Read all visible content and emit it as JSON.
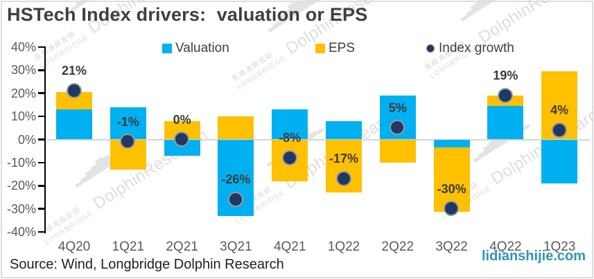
{
  "title": "HSTech Index drivers:  valuation or EPS",
  "source": "Source: Wind, Longbridge Dolphin Research",
  "site_watermark": "lidianshijie.com",
  "watermark_brand": {
    "cn": "長橋海豚投研",
    "en": "LONGBRIDGE",
    "name": "DolphinResearch",
    "icon_glyph": "▂▃▅▆█▇▅▃▂"
  },
  "colors": {
    "valuation": "#00B0F0",
    "eps": "#FFC000",
    "index_growth": "#1F3864",
    "dot_ring": "#9B9B9B",
    "zero_line": "#D6D6D6",
    "axis": "#000000",
    "axis_text": "#595959",
    "title_text": "#3F3F3F",
    "point_label_text": "#3B3B3B",
    "watermark_gray": "#D9D9D9",
    "site_watermark_teal": "#2E96B5"
  },
  "chart_data": {
    "type": "bar",
    "subtype": "stacked-bars-with-scatter-overlay",
    "title": "HSTech Index drivers: valuation or EPS",
    "categories": [
      "4Q20",
      "1Q21",
      "2Q21",
      "3Q21",
      "4Q21",
      "1Q22",
      "2Q22",
      "3Q22",
      "4Q22",
      "1Q23"
    ],
    "series": [
      {
        "name": "Valuation",
        "type": "bar",
        "color": "#00B0F0",
        "values": [
          13,
          14,
          -7,
          -33,
          13,
          8,
          19,
          -3.3,
          14.5,
          -19
        ]
      },
      {
        "name": "EPS",
        "type": "bar",
        "color": "#FFC000",
        "values": [
          7.5,
          -13,
          8,
          10,
          -18,
          -23,
          -10,
          -28,
          4.5,
          29.5
        ]
      },
      {
        "name": "Index growth",
        "type": "scatter",
        "color": "#1F3864",
        "values": [
          21,
          -1,
          0,
          -26,
          -8,
          -17,
          5,
          -30,
          19,
          4
        ]
      }
    ],
    "point_labels": [
      "21%",
      "-1%",
      "0%",
      "-26%",
      "-8%",
      "-17%",
      "5%",
      "-30%",
      "19%",
      "4%"
    ],
    "ylim": [
      -40,
      40
    ],
    "ytick_labels": [
      "40%",
      "30%",
      "20%",
      "10%",
      "0%",
      "-10%",
      "-20%",
      "-30%",
      "-40%"
    ],
    "ytick_values": [
      40,
      30,
      20,
      10,
      0,
      -10,
      -20,
      -30,
      -40
    ],
    "grid": "zero-line-only",
    "legend_position": "top"
  }
}
